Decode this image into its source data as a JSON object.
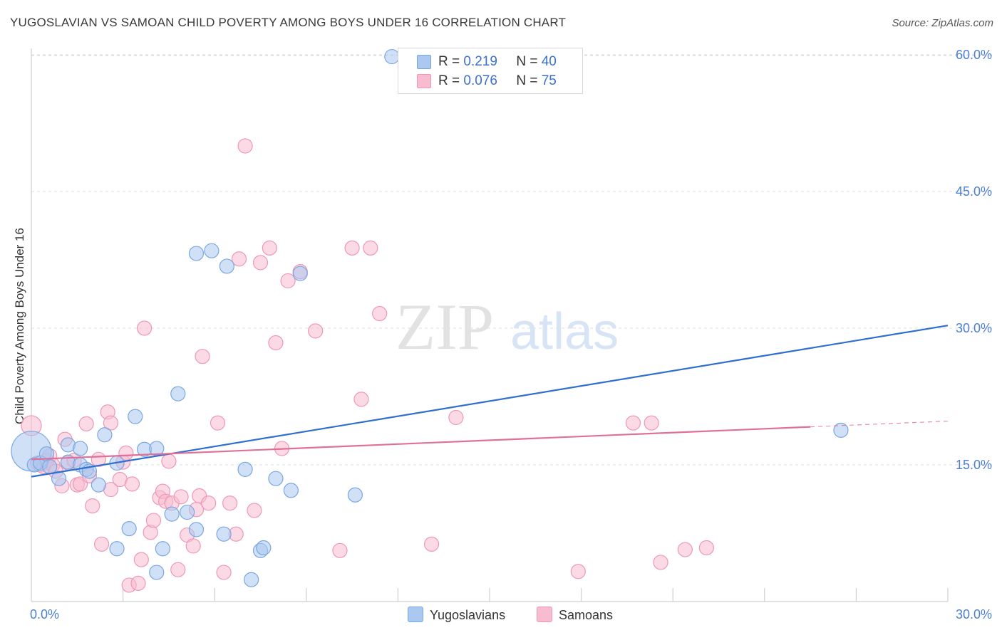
{
  "header": {
    "title": "YUGOSLAVIAN VS SAMOAN CHILD POVERTY AMONG BOYS UNDER 16 CORRELATION CHART",
    "source": "Source: ZipAtlas.com"
  },
  "watermark": {
    "zip": "ZIP",
    "atlas": "atlas"
  },
  "legend": {
    "rows": [
      {
        "r_label": "R = ",
        "r_value": "0.219",
        "n_label": "N = ",
        "n_value": "40"
      },
      {
        "r_label": "R = ",
        "r_value": "0.076",
        "n_label": "N = ",
        "n_value": "75"
      }
    ],
    "bottom": [
      "Yugoslavians",
      "Samoans"
    ]
  },
  "colors": {
    "yugoslavians_fill": "#aac8f0",
    "yugoslavians_stroke": "#7aa6e0",
    "yugoslavians_line": "#2f6fd0",
    "samoans_fill": "#f7bcd0",
    "samoans_stroke": "#ee98b6",
    "samoans_line": "#e0709a",
    "tick_text": "#4a7fd4"
  },
  "chart_data": {
    "type": "scatter",
    "title": "YUGOSLAVIAN VS SAMOAN CHILD POVERTY AMONG BOYS UNDER 16 CORRELATION CHART",
    "xlabel": "",
    "ylabel": "Child Poverty Among Boys Under 16",
    "xlim": [
      0,
      30
    ],
    "ylim": [
      0,
      64
    ],
    "x_tick_labels": [
      {
        "value": 0,
        "label": "0.0%"
      },
      {
        "value": 30,
        "label": "30.0%"
      }
    ],
    "y_tick_labels": [
      {
        "value": 15,
        "label": "15.0%"
      },
      {
        "value": 30,
        "label": "30.0%"
      },
      {
        "value": 45,
        "label": "45.0%"
      },
      {
        "value": 60,
        "label": "60.0%"
      }
    ],
    "x_minor_ticks": [
      3,
      6,
      9,
      12,
      15,
      18,
      21,
      24,
      27,
      30
    ],
    "grid": true,
    "legend_position": "top-center",
    "series": [
      {
        "name": "Yugoslavians",
        "r": 0.219,
        "n": 40,
        "trend": {
          "x": [
            0,
            30
          ],
          "y": [
            13.7,
            30.3
          ],
          "dashed_from": null
        },
        "points": [
          [
            0.0,
            16.5,
            28
          ],
          [
            0.1,
            15.0,
            10
          ],
          [
            0.3,
            15.2,
            10
          ],
          [
            0.5,
            16.2,
            10
          ],
          [
            0.6,
            14.8,
            10
          ],
          [
            0.9,
            13.5,
            10
          ],
          [
            1.2,
            17.2,
            10
          ],
          [
            1.2,
            15.3,
            10
          ],
          [
            1.6,
            15.0,
            10
          ],
          [
            1.8,
            14.5,
            10
          ],
          [
            1.9,
            14.3,
            10
          ],
          [
            1.6,
            16.8,
            10
          ],
          [
            2.2,
            12.8,
            10
          ],
          [
            2.4,
            18.3,
            10
          ],
          [
            2.8,
            15.2,
            10
          ],
          [
            3.4,
            20.3,
            10
          ],
          [
            3.7,
            16.7,
            10
          ],
          [
            4.1,
            16.8,
            10
          ],
          [
            2.8,
            5.8,
            10
          ],
          [
            3.2,
            8.0,
            10
          ],
          [
            4.1,
            3.2,
            10
          ],
          [
            4.3,
            5.8,
            10
          ],
          [
            4.6,
            9.6,
            10
          ],
          [
            4.8,
            22.8,
            10
          ],
          [
            5.1,
            9.8,
            10
          ],
          [
            5.4,
            7.9,
            10
          ],
          [
            5.4,
            38.2,
            10
          ],
          [
            5.9,
            38.5,
            10
          ],
          [
            6.3,
            7.4,
            10
          ],
          [
            6.4,
            36.8,
            10
          ],
          [
            7.0,
            14.5,
            10
          ],
          [
            7.2,
            2.4,
            10
          ],
          [
            7.5,
            5.6,
            10
          ],
          [
            7.6,
            5.9,
            10
          ],
          [
            8.0,
            13.5,
            10
          ],
          [
            8.5,
            12.2,
            10
          ],
          [
            8.8,
            36.0,
            10
          ],
          [
            10.6,
            11.7,
            10
          ],
          [
            11.8,
            59.8,
            10
          ],
          [
            26.5,
            18.8,
            10
          ]
        ]
      },
      {
        "name": "Samoans",
        "r": 0.076,
        "n": 75,
        "trend": {
          "x": [
            0,
            30
          ],
          "y": [
            15.6,
            19.8
          ],
          "solid_until_x": 25.5
        },
        "points": [
          [
            0.0,
            19.3,
            14
          ],
          [
            0.2,
            15.2,
            10
          ],
          [
            0.3,
            15.0,
            10
          ],
          [
            0.4,
            14.8,
            10
          ],
          [
            0.5,
            15.5,
            10
          ],
          [
            0.6,
            16.0,
            10
          ],
          [
            0.7,
            15.0,
            10
          ],
          [
            0.8,
            14.3,
            10
          ],
          [
            1.0,
            12.7,
            10
          ],
          [
            1.1,
            17.8,
            10
          ],
          [
            1.2,
            15.2,
            10
          ],
          [
            1.4,
            15.5,
            10
          ],
          [
            1.5,
            12.8,
            10
          ],
          [
            1.6,
            12.9,
            10
          ],
          [
            1.8,
            19.5,
            10
          ],
          [
            1.9,
            13.8,
            10
          ],
          [
            2.0,
            10.5,
            10
          ],
          [
            2.2,
            15.6,
            10
          ],
          [
            2.3,
            6.3,
            10
          ],
          [
            2.5,
            20.8,
            10
          ],
          [
            2.6,
            19.6,
            10
          ],
          [
            2.6,
            12.3,
            10
          ],
          [
            2.9,
            13.4,
            10
          ],
          [
            3.0,
            15.3,
            10
          ],
          [
            3.1,
            16.3,
            10
          ],
          [
            3.2,
            1.8,
            10
          ],
          [
            3.3,
            12.9,
            10
          ],
          [
            3.5,
            2.0,
            10
          ],
          [
            3.6,
            4.6,
            10
          ],
          [
            3.7,
            30.0,
            10
          ],
          [
            3.9,
            7.6,
            10
          ],
          [
            4.0,
            8.9,
            10
          ],
          [
            4.2,
            11.4,
            10
          ],
          [
            4.3,
            12.1,
            10
          ],
          [
            4.4,
            11.0,
            10
          ],
          [
            4.5,
            15.4,
            10
          ],
          [
            4.6,
            10.8,
            10
          ],
          [
            4.8,
            3.5,
            10
          ],
          [
            4.9,
            11.5,
            10
          ],
          [
            5.1,
            7.3,
            10
          ],
          [
            5.3,
            6.1,
            10
          ],
          [
            5.4,
            10.1,
            10
          ],
          [
            5.5,
            11.6,
            10
          ],
          [
            5.6,
            26.9,
            10
          ],
          [
            5.8,
            10.8,
            10
          ],
          [
            6.1,
            19.6,
            10
          ],
          [
            6.3,
            3.2,
            10
          ],
          [
            6.5,
            10.8,
            10
          ],
          [
            6.7,
            7.4,
            10
          ],
          [
            6.8,
            37.6,
            10
          ],
          [
            7.0,
            50.0,
            10
          ],
          [
            7.3,
            10.0,
            10
          ],
          [
            7.5,
            37.2,
            10
          ],
          [
            7.8,
            38.8,
            10
          ],
          [
            8.0,
            28.4,
            10
          ],
          [
            8.2,
            16.8,
            10
          ],
          [
            8.4,
            35.2,
            10
          ],
          [
            8.8,
            36.2,
            10
          ],
          [
            9.3,
            29.7,
            10
          ],
          [
            10.1,
            5.6,
            10
          ],
          [
            10.5,
            38.8,
            10
          ],
          [
            10.8,
            22.2,
            10
          ],
          [
            11.1,
            38.8,
            10
          ],
          [
            11.4,
            31.6,
            10
          ],
          [
            13.1,
            6.3,
            10
          ],
          [
            13.9,
            20.2,
            10
          ],
          [
            17.9,
            3.3,
            10
          ],
          [
            19.7,
            19.6,
            10
          ],
          [
            20.3,
            19.6,
            10
          ],
          [
            20.6,
            4.3,
            10
          ],
          [
            21.4,
            5.7,
            10
          ],
          [
            22.1,
            5.9,
            10
          ]
        ]
      }
    ]
  }
}
